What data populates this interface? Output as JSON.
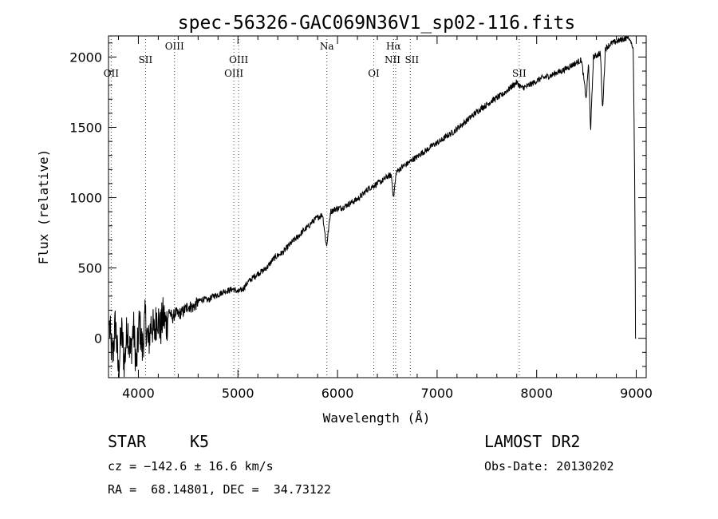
{
  "chart_data": {
    "type": "line",
    "title": "spec-56326-GAC069N36V1_sp02-116.fits",
    "xlabel": "Wavelength (Å)",
    "ylabel": "Flux (relative)",
    "xlim": [
      3700,
      9100
    ],
    "ylim": [
      -280,
      2150
    ],
    "x_ticks": [
      4000,
      5000,
      6000,
      7000,
      8000,
      9000
    ],
    "y_ticks": [
      0,
      500,
      1000,
      1500,
      2000
    ],
    "grid": false,
    "series": [
      {
        "x": [
          3710,
          3740,
          3770,
          3800,
          3830,
          3860,
          3890,
          3920,
          3950,
          3980,
          4010,
          4040,
          4070,
          4100,
          4130,
          4160,
          4190,
          4220,
          4250,
          4280,
          4310,
          4340,
          4370,
          4400,
          4450,
          4500,
          4550,
          4600,
          4650,
          4700,
          4750,
          4800,
          4850,
          4900,
          4950,
          5000,
          5050,
          5100,
          5150,
          5200,
          5250,
          5300,
          5350,
          5400,
          5450,
          5500,
          5550,
          5600,
          5650,
          5700,
          5750,
          5800,
          5850,
          5890,
          5930,
          5980,
          6050,
          6100,
          6150,
          6200,
          6250,
          6300,
          6350,
          6400,
          6450,
          6500,
          6540,
          6563,
          6590,
          6650,
          6700,
          6750,
          6800,
          6850,
          6900,
          6950,
          7000,
          7050,
          7100,
          7150,
          7200,
          7250,
          7300,
          7350,
          7400,
          7450,
          7500,
          7550,
          7600,
          7650,
          7700,
          7750,
          7800,
          7850,
          7900,
          7950,
          8000,
          8050,
          8100,
          8150,
          8200,
          8250,
          8300,
          8350,
          8400,
          8450,
          8498,
          8520,
          8542,
          8570,
          8600,
          8640,
          8662,
          8690,
          8720,
          8760,
          8800,
          8840,
          8880,
          8920,
          8950,
          8970,
          8985,
          8993,
          9000
        ],
        "y": [
          80,
          -150,
          120,
          -250,
          60,
          -180,
          100,
          -120,
          80,
          -200,
          120,
          -80,
          150,
          -50,
          120,
          30,
          180,
          60,
          160,
          90,
          200,
          140,
          180,
          170,
          190,
          230,
          220,
          260,
          280,
          270,
          300,
          310,
          330,
          340,
          350,
          330,
          350,
          400,
          430,
          460,
          480,
          510,
          560,
          590,
          610,
          650,
          690,
          720,
          760,
          790,
          830,
          860,
          880,
          650,
          900,
          920,
          930,
          950,
          970,
          990,
          1020,
          1060,
          1080,
          1100,
          1120,
          1150,
          1160,
          1000,
          1180,
          1220,
          1240,
          1270,
          1290,
          1320,
          1340,
          1370,
          1390,
          1410,
          1440,
          1460,
          1490,
          1520,
          1550,
          1580,
          1610,
          1640,
          1660,
          1690,
          1710,
          1730,
          1760,
          1790,
          1820,
          1780,
          1790,
          1810,
          1830,
          1850,
          1860,
          1870,
          1890,
          1900,
          1920,
          1940,
          1960,
          1980,
          1700,
          1960,
          1480,
          2000,
          2010,
          2030,
          1620,
          2060,
          2080,
          2100,
          2110,
          2120,
          2130,
          2140,
          2100,
          2060,
          1100,
          0,
          0
        ]
      }
    ],
    "annotations": [
      {
        "label": "OII",
        "x": 3727
      },
      {
        "label": "SII",
        "x": 4072
      },
      {
        "label": "OIII",
        "x": 4363
      },
      {
        "label": "OIII",
        "x": 4959
      },
      {
        "label": "OIII",
        "x": 5007
      },
      {
        "label": "Na",
        "x": 5893
      },
      {
        "label": "OI",
        "x": 6364
      },
      {
        "label": "Hα",
        "x": 6563
      },
      {
        "label": "NII",
        "x": 6584
      },
      {
        "label": "SII",
        "x": 6731
      },
      {
        "label": "SII",
        "x": 7825
      }
    ]
  },
  "info": {
    "object_type": "STAR",
    "subclass": "K5",
    "survey": "LAMOST DR2",
    "redshift": "cz = −142.6 ± 16.6 km/s",
    "obs_date": "Obs-Date: 20130202",
    "coordinates": "RA =  68.14801, DEC =  34.73122"
  }
}
